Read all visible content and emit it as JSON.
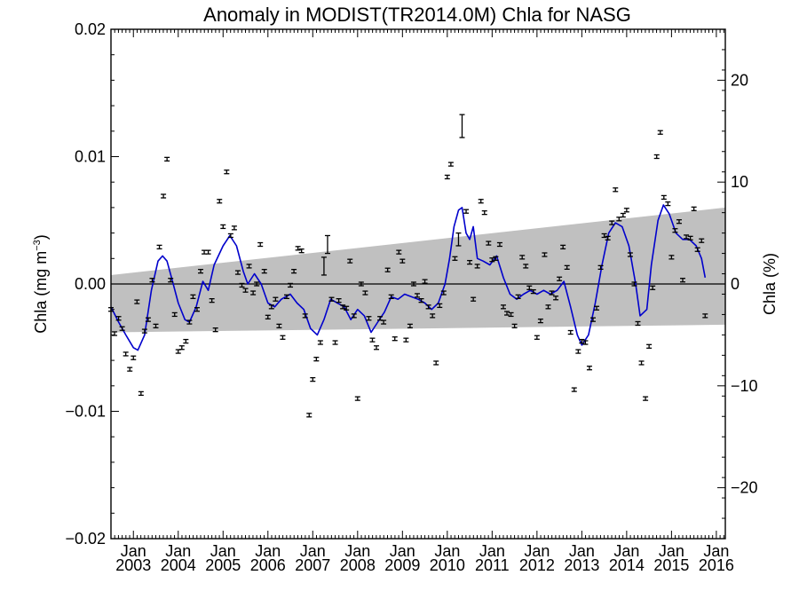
{
  "chart_data": {
    "type": "scatter",
    "title": "Anomaly in MODIST(TR2014.0M) Chla for NASG",
    "ylabel_left": {
      "main": "Chla (mg m",
      "sup": "−3",
      "close": ")"
    },
    "ylabel_right": "Chla (%)",
    "ylim_left": [
      -0.02,
      0.02
    ],
    "ylim_right": [
      -25,
      25
    ],
    "xlim": [
      2002.5,
      2016.2
    ],
    "y_ticks_left": [
      {
        "value": 0.02,
        "label": "0.02"
      },
      {
        "value": 0.01,
        "label": "0.01"
      },
      {
        "value": 0.0,
        "label": "0.00"
      },
      {
        "value": -0.01,
        "label": "−0.01"
      },
      {
        "value": -0.02,
        "label": "−0.02"
      }
    ],
    "y_ticks_right": [
      {
        "value": 20,
        "label": "20"
      },
      {
        "value": 10,
        "label": "10"
      },
      {
        "value": 0,
        "label": "0"
      },
      {
        "value": -10,
        "label": "−10"
      },
      {
        "value": -20,
        "label": "−20"
      }
    ],
    "x_ticks": [
      {
        "value": 2003.0,
        "month": "Jan",
        "year": "2003"
      },
      {
        "value": 2004.0,
        "month": "Jan",
        "year": "2004"
      },
      {
        "value": 2005.0,
        "month": "Jan",
        "year": "2005"
      },
      {
        "value": 2006.0,
        "month": "Jan",
        "year": "2006"
      },
      {
        "value": 2007.0,
        "month": "Jan",
        "year": "2007"
      },
      {
        "value": 2008.0,
        "month": "Jan",
        "year": "2008"
      },
      {
        "value": 2009.0,
        "month": "Jan",
        "year": "2009"
      },
      {
        "value": 2010.0,
        "month": "Jan",
        "year": "2010"
      },
      {
        "value": 2011.0,
        "month": "Jan",
        "year": "2011"
      },
      {
        "value": 2012.0,
        "month": "Jan",
        "year": "2012"
      },
      {
        "value": 2013.0,
        "month": "Jan",
        "year": "2013"
      },
      {
        "value": 2014.0,
        "month": "Jan",
        "year": "2014"
      },
      {
        "value": 2015.0,
        "month": "Jan",
        "year": "2015"
      },
      {
        "value": 2016.0,
        "month": "Jan",
        "year": "2016"
      }
    ],
    "trend_band": {
      "upper_start": 0.0007,
      "upper_end": 0.006,
      "lower_start": -0.0038,
      "lower_end": -0.0032
    },
    "zero_line": 0.0,
    "colors": {
      "band": "#c0c0c0",
      "smooth": "#0000cc",
      "points": "#000000",
      "axes": "#000000"
    },
    "monthly_anomalies": [
      {
        "x": 2002.5,
        "y": -0.002
      },
      {
        "x": 2002.58,
        "y": -0.0039
      },
      {
        "x": 2002.67,
        "y": -0.0027
      },
      {
        "x": 2002.75,
        "y": -0.0035
      },
      {
        "x": 2002.83,
        "y": -0.0055
      },
      {
        "x": 2002.92,
        "y": -0.0067
      },
      {
        "x": 2003.0,
        "y": -0.0058
      },
      {
        "x": 2003.08,
        "y": -0.0014
      },
      {
        "x": 2003.17,
        "y": -0.0086
      },
      {
        "x": 2003.25,
        "y": -0.0037
      },
      {
        "x": 2003.33,
        "y": -0.0028
      },
      {
        "x": 2003.42,
        "y": 0.0003
      },
      {
        "x": 2003.5,
        "y": -0.0033
      },
      {
        "x": 2003.58,
        "y": 0.0029
      },
      {
        "x": 2003.67,
        "y": 0.0069
      },
      {
        "x": 2003.75,
        "y": 0.0098
      },
      {
        "x": 2003.83,
        "y": 0.0003
      },
      {
        "x": 2003.92,
        "y": -0.0024
      },
      {
        "x": 2004.0,
        "y": -0.0053
      },
      {
        "x": 2004.08,
        "y": -0.005
      },
      {
        "x": 2004.17,
        "y": -0.0045
      },
      {
        "x": 2004.25,
        "y": -0.003
      },
      {
        "x": 2004.33,
        "y": -0.001
      },
      {
        "x": 2004.42,
        "y": -0.002
      },
      {
        "x": 2004.5,
        "y": 0.001
      },
      {
        "x": 2004.58,
        "y": 0.0025
      },
      {
        "x": 2004.67,
        "y": 0.0025
      },
      {
        "x": 2004.75,
        "y": -0.0013
      },
      {
        "x": 2004.83,
        "y": -0.0036
      },
      {
        "x": 2004.92,
        "y": 0.0065
      },
      {
        "x": 2005.0,
        "y": 0.0045
      },
      {
        "x": 2005.08,
        "y": 0.0088
      },
      {
        "x": 2005.17,
        "y": 0.0038
      },
      {
        "x": 2005.25,
        "y": 0.0044
      },
      {
        "x": 2005.33,
        "y": 0.0009
      },
      {
        "x": 2005.42,
        "y": -0.0001
      },
      {
        "x": 2005.5,
        "y": -0.0005
      },
      {
        "x": 2005.58,
        "y": 0.0014
      },
      {
        "x": 2005.67,
        "y": -0.0007
      },
      {
        "x": 2005.75,
        "y": 0.0
      },
      {
        "x": 2005.83,
        "y": 0.0031
      },
      {
        "x": 2005.92,
        "y": 0.001
      },
      {
        "x": 2006.0,
        "y": -0.0026
      },
      {
        "x": 2006.08,
        "y": -0.0018
      },
      {
        "x": 2006.17,
        "y": -0.0012
      },
      {
        "x": 2006.25,
        "y": -0.0033
      },
      {
        "x": 2006.33,
        "y": -0.0042
      },
      {
        "x": 2006.42,
        "y": -0.001
      },
      {
        "x": 2006.5,
        "y": -0.0001
      },
      {
        "x": 2006.58,
        "y": 0.001
      },
      {
        "x": 2006.67,
        "y": 0.0028
      },
      {
        "x": 2006.75,
        "y": 0.0026
      },
      {
        "x": 2006.83,
        "y": -0.0025
      },
      {
        "x": 2006.92,
        "y": -0.0103
      },
      {
        "x": 2007.0,
        "y": -0.0075
      },
      {
        "x": 2007.08,
        "y": -0.0059
      },
      {
        "x": 2007.17,
        "y": -0.0046
      },
      {
        "x": 2007.25,
        "y": 0.0014
      },
      {
        "x": 2007.33,
        "y": 0.0031
      },
      {
        "x": 2007.42,
        "y": -0.0012
      },
      {
        "x": 2007.5,
        "y": -0.0046
      },
      {
        "x": 2007.58,
        "y": -0.0013
      },
      {
        "x": 2007.67,
        "y": -0.0018
      },
      {
        "x": 2007.75,
        "y": -0.0019
      },
      {
        "x": 2007.83,
        "y": 0.0018
      },
      {
        "x": 2007.92,
        "y": -0.0025
      },
      {
        "x": 2008.0,
        "y": -0.009
      },
      {
        "x": 2008.08,
        "y": 0.0
      },
      {
        "x": 2008.17,
        "y": -0.0007
      },
      {
        "x": 2008.25,
        "y": -0.0027
      },
      {
        "x": 2008.33,
        "y": -0.0044
      },
      {
        "x": 2008.42,
        "y": -0.005
      },
      {
        "x": 2008.5,
        "y": -0.0027
      },
      {
        "x": 2008.58,
        "y": -0.003
      },
      {
        "x": 2008.67,
        "y": 0.0011
      },
      {
        "x": 2008.75,
        "y": -0.001
      },
      {
        "x": 2008.83,
        "y": -0.0043
      },
      {
        "x": 2008.92,
        "y": 0.0025
      },
      {
        "x": 2009.0,
        "y": 0.0018
      },
      {
        "x": 2009.08,
        "y": -0.0044
      },
      {
        "x": 2009.17,
        "y": -0.0033
      },
      {
        "x": 2009.25,
        "y": 0.0
      },
      {
        "x": 2009.33,
        "y": -0.0009
      },
      {
        "x": 2009.42,
        "y": -0.0013
      },
      {
        "x": 2009.5,
        "y": 0.0002
      },
      {
        "x": 2009.58,
        "y": -0.0018
      },
      {
        "x": 2009.67,
        "y": -0.0025
      },
      {
        "x": 2009.75,
        "y": -0.0062
      },
      {
        "x": 2009.83,
        "y": -0.0017
      },
      {
        "x": 2009.92,
        "y": -0.0007
      },
      {
        "x": 2010.0,
        "y": 0.0084
      },
      {
        "x": 2010.08,
        "y": 0.0094
      },
      {
        "x": 2010.17,
        "y": 0.002
      },
      {
        "x": 2010.25,
        "y": 0.0035
      },
      {
        "x": 2010.33,
        "y": 0.0124
      },
      {
        "x": 2010.42,
        "y": 0.0057
      },
      {
        "x": 2010.5,
        "y": 0.0017
      },
      {
        "x": 2010.58,
        "y": -0.0012
      },
      {
        "x": 2010.67,
        "y": 0.0014
      },
      {
        "x": 2010.75,
        "y": 0.0065
      },
      {
        "x": 2010.83,
        "y": 0.0056
      },
      {
        "x": 2010.92,
        "y": 0.0032
      },
      {
        "x": 2011.0,
        "y": 0.0019
      },
      {
        "x": 2011.08,
        "y": 0.002
      },
      {
        "x": 2011.17,
        "y": 0.0031
      },
      {
        "x": 2011.25,
        "y": -0.0018
      },
      {
        "x": 2011.33,
        "y": -0.0023
      },
      {
        "x": 2011.42,
        "y": -0.0024
      },
      {
        "x": 2011.5,
        "y": -0.0033
      },
      {
        "x": 2011.58,
        "y": -0.001
      },
      {
        "x": 2011.67,
        "y": 0.0021
      },
      {
        "x": 2011.75,
        "y": 0.0014
      },
      {
        "x": 2011.83,
        "y": -0.0003
      },
      {
        "x": 2011.92,
        "y": -0.0006
      },
      {
        "x": 2012.0,
        "y": -0.0042
      },
      {
        "x": 2012.08,
        "y": -0.0029
      },
      {
        "x": 2012.17,
        "y": 0.0023
      },
      {
        "x": 2012.25,
        "y": -0.0018
      },
      {
        "x": 2012.33,
        "y": -0.0007
      },
      {
        "x": 2012.42,
        "y": -0.0011
      },
      {
        "x": 2012.5,
        "y": 0.0004
      },
      {
        "x": 2012.58,
        "y": 0.0029
      },
      {
        "x": 2012.67,
        "y": 0.0013
      },
      {
        "x": 2012.75,
        "y": -0.0038
      },
      {
        "x": 2012.83,
        "y": -0.0083
      },
      {
        "x": 2012.92,
        "y": -0.0053
      },
      {
        "x": 2013.0,
        "y": -0.0045
      },
      {
        "x": 2013.08,
        "y": -0.0046
      },
      {
        "x": 2013.17,
        "y": -0.0066
      },
      {
        "x": 2013.25,
        "y": -0.0028
      },
      {
        "x": 2013.33,
        "y": -0.0019
      },
      {
        "x": 2013.42,
        "y": 0.0013
      },
      {
        "x": 2013.5,
        "y": 0.0038
      },
      {
        "x": 2013.58,
        "y": 0.0036
      },
      {
        "x": 2013.67,
        "y": 0.0048
      },
      {
        "x": 2013.75,
        "y": 0.0074
      },
      {
        "x": 2013.83,
        "y": 0.0051
      },
      {
        "x": 2013.92,
        "y": 0.0054
      },
      {
        "x": 2014.0,
        "y": 0.0058
      },
      {
        "x": 2014.08,
        "y": 0.0023
      },
      {
        "x": 2014.17,
        "y": 0.0
      },
      {
        "x": 2014.25,
        "y": -0.0031
      },
      {
        "x": 2014.33,
        "y": -0.0062
      },
      {
        "x": 2014.42,
        "y": -0.009
      },
      {
        "x": 2014.5,
        "y": -0.0049
      },
      {
        "x": 2014.58,
        "y": -0.0003
      },
      {
        "x": 2014.67,
        "y": 0.01
      },
      {
        "x": 2014.75,
        "y": 0.0119
      },
      {
        "x": 2014.83,
        "y": 0.0068
      },
      {
        "x": 2014.92,
        "y": 0.0063
      },
      {
        "x": 2015.0,
        "y": 0.0021
      },
      {
        "x": 2015.08,
        "y": 0.0042
      },
      {
        "x": 2015.17,
        "y": 0.0049
      },
      {
        "x": 2015.25,
        "y": 0.0003
      },
      {
        "x": 2015.33,
        "y": 0.0037
      },
      {
        "x": 2015.42,
        "y": 0.0036
      },
      {
        "x": 2015.5,
        "y": 0.0059
      },
      {
        "x": 2015.58,
        "y": 0.0027
      },
      {
        "x": 2015.67,
        "y": 0.0034
      },
      {
        "x": 2015.75,
        "y": -0.0025
      }
    ],
    "large_error_bars": [
      {
        "x": 2007.25,
        "y": 0.0014,
        "err": 0.0007
      },
      {
        "x": 2007.33,
        "y": 0.0031,
        "err": 0.0007
      },
      {
        "x": 2010.33,
        "y": 0.0124,
        "err": 0.0009
      },
      {
        "x": 2010.25,
        "y": 0.0035,
        "err": 0.0005
      }
    ],
    "smoothed_series": [
      {
        "x": 2002.5,
        "y": -0.0018
      },
      {
        "x": 2002.67,
        "y": -0.003
      },
      {
        "x": 2002.83,
        "y": -0.004
      },
      {
        "x": 2003.0,
        "y": -0.005
      },
      {
        "x": 2003.1,
        "y": -0.0052
      },
      {
        "x": 2003.25,
        "y": -0.004
      },
      {
        "x": 2003.4,
        "y": -0.0005
      },
      {
        "x": 2003.55,
        "y": 0.0018
      },
      {
        "x": 2003.65,
        "y": 0.0022
      },
      {
        "x": 2003.75,
        "y": 0.0018
      },
      {
        "x": 2003.85,
        "y": 0.0005
      },
      {
        "x": 2004.0,
        "y": -0.0015
      },
      {
        "x": 2004.15,
        "y": -0.0028
      },
      {
        "x": 2004.25,
        "y": -0.003
      },
      {
        "x": 2004.4,
        "y": -0.0018
      },
      {
        "x": 2004.55,
        "y": 0.0002
      },
      {
        "x": 2004.67,
        "y": -0.0005
      },
      {
        "x": 2004.8,
        "y": 0.0015
      },
      {
        "x": 2005.0,
        "y": 0.003
      },
      {
        "x": 2005.15,
        "y": 0.0038
      },
      {
        "x": 2005.3,
        "y": 0.003
      },
      {
        "x": 2005.45,
        "y": 0.001
      },
      {
        "x": 2005.55,
        "y": 0.0
      },
      {
        "x": 2005.7,
        "y": 0.0008
      },
      {
        "x": 2005.85,
        "y": 0.0
      },
      {
        "x": 2006.0,
        "y": -0.0015
      },
      {
        "x": 2006.15,
        "y": -0.0018
      },
      {
        "x": 2006.3,
        "y": -0.0012
      },
      {
        "x": 2006.5,
        "y": -0.0008
      },
      {
        "x": 2006.65,
        "y": -0.0015
      },
      {
        "x": 2006.8,
        "y": -0.002
      },
      {
        "x": 2006.95,
        "y": -0.0035
      },
      {
        "x": 2007.1,
        "y": -0.004
      },
      {
        "x": 2007.25,
        "y": -0.0028
      },
      {
        "x": 2007.4,
        "y": -0.0012
      },
      {
        "x": 2007.55,
        "y": -0.0015
      },
      {
        "x": 2007.7,
        "y": -0.0018
      },
      {
        "x": 2007.85,
        "y": -0.0028
      },
      {
        "x": 2008.0,
        "y": -0.002
      },
      {
        "x": 2008.15,
        "y": -0.0025
      },
      {
        "x": 2008.3,
        "y": -0.0038
      },
      {
        "x": 2008.45,
        "y": -0.003
      },
      {
        "x": 2008.6,
        "y": -0.0022
      },
      {
        "x": 2008.75,
        "y": -0.001
      },
      {
        "x": 2008.9,
        "y": -0.0012
      },
      {
        "x": 2009.05,
        "y": -0.0008
      },
      {
        "x": 2009.2,
        "y": -0.001
      },
      {
        "x": 2009.35,
        "y": -0.0012
      },
      {
        "x": 2009.5,
        "y": -0.0015
      },
      {
        "x": 2009.65,
        "y": -0.002
      },
      {
        "x": 2009.8,
        "y": -0.0015
      },
      {
        "x": 2009.95,
        "y": 0.0
      },
      {
        "x": 2010.05,
        "y": 0.002
      },
      {
        "x": 2010.15,
        "y": 0.0045
      },
      {
        "x": 2010.25,
        "y": 0.0058
      },
      {
        "x": 2010.33,
        "y": 0.006
      },
      {
        "x": 2010.42,
        "y": 0.004
      },
      {
        "x": 2010.5,
        "y": 0.0035
      },
      {
        "x": 2010.58,
        "y": 0.0045
      },
      {
        "x": 2010.67,
        "y": 0.002
      },
      {
        "x": 2010.8,
        "y": 0.0018
      },
      {
        "x": 2010.95,
        "y": 0.0015
      },
      {
        "x": 2011.1,
        "y": 0.0022
      },
      {
        "x": 2011.25,
        "y": 0.0005
      },
      {
        "x": 2011.4,
        "y": -0.0008
      },
      {
        "x": 2011.55,
        "y": -0.0012
      },
      {
        "x": 2011.7,
        "y": -0.0008
      },
      {
        "x": 2011.85,
        "y": -0.0005
      },
      {
        "x": 2012.0,
        "y": -0.0008
      },
      {
        "x": 2012.15,
        "y": -0.0005
      },
      {
        "x": 2012.3,
        "y": -0.0008
      },
      {
        "x": 2012.45,
        "y": -0.0005
      },
      {
        "x": 2012.6,
        "y": 0.0002
      },
      {
        "x": 2012.75,
        "y": -0.0018
      },
      {
        "x": 2012.9,
        "y": -0.004
      },
      {
        "x": 2013.0,
        "y": -0.0048
      },
      {
        "x": 2013.15,
        "y": -0.004
      },
      {
        "x": 2013.3,
        "y": -0.0015
      },
      {
        "x": 2013.45,
        "y": 0.0015
      },
      {
        "x": 2013.6,
        "y": 0.004
      },
      {
        "x": 2013.75,
        "y": 0.0048
      },
      {
        "x": 2013.9,
        "y": 0.0045
      },
      {
        "x": 2014.05,
        "y": 0.003
      },
      {
        "x": 2014.2,
        "y": 0.0
      },
      {
        "x": 2014.3,
        "y": -0.0025
      },
      {
        "x": 2014.45,
        "y": -0.002
      },
      {
        "x": 2014.55,
        "y": 0.0015
      },
      {
        "x": 2014.7,
        "y": 0.005
      },
      {
        "x": 2014.82,
        "y": 0.0062
      },
      {
        "x": 2014.95,
        "y": 0.0055
      },
      {
        "x": 2015.1,
        "y": 0.004
      },
      {
        "x": 2015.25,
        "y": 0.0035
      },
      {
        "x": 2015.4,
        "y": 0.0035
      },
      {
        "x": 2015.55,
        "y": 0.003
      },
      {
        "x": 2015.67,
        "y": 0.002
      },
      {
        "x": 2015.75,
        "y": 0.0005
      }
    ]
  }
}
